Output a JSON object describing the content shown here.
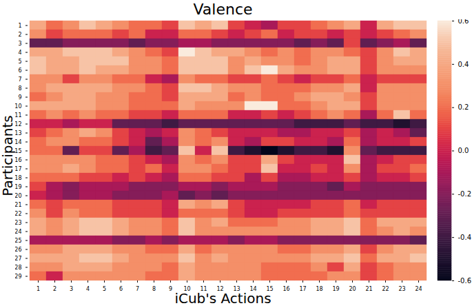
{
  "chart_data": {
    "type": "heatmap",
    "title": "Valence",
    "xlabel": "iCub's Actions",
    "ylabel": "Participants",
    "x_categories": [
      1,
      2,
      3,
      4,
      5,
      6,
      7,
      8,
      9,
      10,
      11,
      12,
      13,
      14,
      15,
      16,
      17,
      18,
      19,
      20,
      21,
      22,
      23,
      24
    ],
    "y_categories": [
      1,
      2,
      3,
      4,
      5,
      6,
      7,
      8,
      9,
      10,
      11,
      12,
      13,
      14,
      15,
      16,
      17,
      18,
      19,
      20,
      21,
      22,
      23,
      24,
      25,
      26,
      27,
      28,
      29
    ],
    "values": [
      [
        0.4,
        0.2,
        0.3,
        0.5,
        0.4,
        0.3,
        0.2,
        0.2,
        0.1,
        0.5,
        0.4,
        0.5,
        0.1,
        0.0,
        -0.1,
        0.1,
        0.1,
        0.2,
        0.3,
        0.4,
        0.0,
        0.4,
        0.5,
        0.5
      ],
      [
        0.3,
        0.1,
        0.2,
        0.2,
        0.2,
        0.1,
        0.2,
        0.0,
        0.0,
        0.2,
        0.2,
        0.1,
        0.0,
        0.1,
        0.2,
        0.0,
        0.1,
        0.1,
        0.0,
        0.1,
        0.0,
        0.1,
        0.2,
        0.3
      ],
      [
        -0.3,
        -0.3,
        -0.2,
        -0.2,
        -0.2,
        -0.2,
        -0.3,
        -0.2,
        -0.2,
        -0.1,
        -0.1,
        -0.2,
        -0.2,
        -0.2,
        -0.2,
        -0.2,
        -0.3,
        -0.2,
        -0.3,
        0.1,
        -0.3,
        -0.2,
        -0.1,
        -0.3
      ],
      [
        0.4,
        0.4,
        0.5,
        0.5,
        0.5,
        0.4,
        0.3,
        0.2,
        0.1,
        0.6,
        0.5,
        0.4,
        0.4,
        0.3,
        0.2,
        0.3,
        0.2,
        0.3,
        0.3,
        0.2,
        0.1,
        0.3,
        0.5,
        0.4
      ],
      [
        0.5,
        0.4,
        0.4,
        0.5,
        0.5,
        0.5,
        0.3,
        0.3,
        0.2,
        0.5,
        0.5,
        0.5,
        0.3,
        0.4,
        0.3,
        0.3,
        0.2,
        0.3,
        0.4,
        0.4,
        0.1,
        0.3,
        0.4,
        0.4
      ],
      [
        0.5,
        0.4,
        0.4,
        0.5,
        0.4,
        0.4,
        0.3,
        0.3,
        0.2,
        0.5,
        0.5,
        0.5,
        0.3,
        0.5,
        0.6,
        0.4,
        0.3,
        0.3,
        0.4,
        0.4,
        0.1,
        0.3,
        0.3,
        0.3
      ],
      [
        0.3,
        0.3,
        0.1,
        0.3,
        0.3,
        0.2,
        0.2,
        0.0,
        -0.1,
        0.3,
        0.2,
        0.2,
        0.1,
        0.1,
        0.2,
        0.1,
        0.0,
        0.1,
        0.1,
        0.2,
        0.0,
        0.1,
        0.1,
        0.1
      ],
      [
        0.3,
        0.4,
        0.4,
        0.4,
        0.4,
        0.3,
        0.3,
        0.2,
        0.1,
        0.5,
        0.5,
        0.4,
        0.3,
        0.3,
        0.2,
        0.2,
        0.2,
        0.3,
        0.3,
        0.4,
        0.0,
        0.3,
        0.3,
        0.3
      ],
      [
        0.2,
        0.3,
        0.4,
        0.4,
        0.3,
        0.3,
        0.2,
        0.2,
        0.1,
        0.4,
        0.4,
        0.4,
        0.2,
        0.3,
        0.2,
        0.2,
        0.3,
        0.4,
        0.4,
        0.3,
        0.1,
        0.3,
        0.3,
        0.3
      ],
      [
        0.4,
        0.4,
        0.4,
        0.4,
        0.3,
        0.3,
        0.2,
        0.2,
        0.2,
        0.4,
        0.3,
        0.3,
        0.3,
        0.6,
        0.6,
        0.2,
        0.2,
        0.3,
        0.4,
        0.4,
        0.1,
        0.3,
        0.3,
        0.3
      ],
      [
        0.2,
        0.3,
        0.2,
        0.3,
        0.2,
        0.2,
        0.1,
        0.1,
        0.0,
        0.2,
        0.2,
        0.2,
        0.0,
        0.0,
        0.1,
        0.0,
        0.1,
        0.2,
        0.3,
        0.2,
        -0.1,
        0.2,
        0.5,
        0.2
      ],
      [
        0.0,
        0.0,
        -0.1,
        0.0,
        0.0,
        -0.3,
        -0.3,
        -0.3,
        -0.4,
        -0.3,
        -0.3,
        -0.3,
        -0.3,
        -0.3,
        -0.3,
        -0.3,
        -0.4,
        -0.4,
        -0.4,
        -0.3,
        -0.4,
        -0.4,
        -0.5,
        -0.4
      ],
      [
        0.1,
        0.2,
        0.3,
        0.4,
        0.3,
        0.1,
        0.0,
        -0.1,
        0.0,
        0.3,
        0.2,
        0.1,
        0.0,
        0.0,
        0.0,
        -0.1,
        -0.1,
        0.0,
        0.0,
        0.1,
        -0.1,
        0.0,
        -0.1,
        -0.3
      ],
      [
        0.2,
        0.3,
        0.3,
        0.2,
        0.2,
        0.1,
        0.0,
        -0.3,
        -0.1,
        0.3,
        0.2,
        0.3,
        0.0,
        -0.1,
        0.1,
        0.1,
        0.0,
        0.0,
        -0.1,
        0.2,
        -0.1,
        0.0,
        0.0,
        0.1
      ],
      [
        0.2,
        0.2,
        -0.3,
        0.1,
        0.1,
        -0.3,
        -0.1,
        -0.4,
        -0.3,
        0.5,
        0.0,
        0.5,
        -0.4,
        -0.5,
        -0.6,
        -0.5,
        -0.4,
        -0.4,
        -0.5,
        0.3,
        -0.3,
        -0.4,
        -0.4,
        -0.4
      ],
      [
        0.3,
        0.3,
        0.3,
        0.3,
        0.2,
        0.2,
        0.1,
        0.0,
        -0.1,
        0.3,
        0.2,
        0.3,
        0.1,
        0.1,
        0.4,
        0.1,
        0.0,
        0.0,
        0.0,
        0.5,
        -0.1,
        0.0,
        0.1,
        0.1
      ],
      [
        0.3,
        0.3,
        0.4,
        0.3,
        0.2,
        0.2,
        0.1,
        0.2,
        0.0,
        0.3,
        0.3,
        0.2,
        0.1,
        0.1,
        0.5,
        0.0,
        0.0,
        0.1,
        0.0,
        0.3,
        -0.1,
        0.1,
        0.1,
        0.2
      ],
      [
        0.2,
        0.2,
        0.2,
        0.1,
        0.1,
        0.0,
        0.1,
        0.0,
        -0.1,
        0.2,
        0.2,
        0.1,
        0.1,
        -0.1,
        0.1,
        -0.1,
        -0.1,
        0.0,
        0.0,
        0.1,
        -0.1,
        0.0,
        0.0,
        0.1
      ],
      [
        0.1,
        -0.1,
        -0.2,
        -0.1,
        -0.1,
        -0.1,
        -0.2,
        -0.2,
        -0.2,
        -0.1,
        -0.1,
        -0.2,
        -0.1,
        -0.1,
        -0.1,
        -0.2,
        -0.2,
        -0.2,
        -0.3,
        -0.1,
        -0.2,
        -0.2,
        -0.2,
        -0.2
      ],
      [
        0.0,
        -0.1,
        -0.2,
        -0.1,
        -0.1,
        -0.2,
        -0.2,
        -0.2,
        -0.1,
        -0.3,
        -0.2,
        -0.3,
        -0.2,
        -0.2,
        -0.2,
        -0.2,
        -0.2,
        -0.2,
        -0.2,
        -0.2,
        -0.2,
        -0.2,
        -0.2,
        -0.2
      ],
      [
        0.2,
        0.1,
        0.2,
        0.2,
        0.2,
        0.1,
        0.1,
        0.1,
        0.0,
        0.4,
        0.3,
        0.4,
        0.1,
        0.0,
        0.0,
        0.0,
        0.0,
        0.1,
        0.1,
        0.2,
        0.0,
        0.1,
        0.1,
        0.1
      ],
      [
        0.3,
        0.1,
        0.3,
        0.2,
        0.2,
        0.1,
        0.1,
        0.1,
        0.0,
        0.2,
        0.2,
        0.2,
        0.1,
        0.0,
        0.0,
        0.1,
        0.1,
        0.1,
        0.1,
        0.2,
        0.1,
        0.1,
        0.1,
        0.1
      ],
      [
        0.4,
        0.3,
        0.4,
        0.5,
        0.5,
        0.4,
        0.3,
        0.3,
        0.2,
        0.5,
        0.3,
        0.4,
        0.2,
        0.2,
        0.2,
        0.3,
        0.3,
        0.4,
        0.4,
        0.5,
        0.2,
        0.4,
        0.4,
        0.4
      ],
      [
        0.4,
        0.3,
        0.4,
        0.5,
        0.5,
        0.4,
        0.3,
        0.3,
        0.2,
        0.5,
        0.3,
        0.3,
        0.3,
        0.3,
        0.3,
        0.3,
        0.3,
        0.4,
        0.4,
        0.5,
        0.2,
        0.3,
        0.4,
        0.3
      ],
      [
        -0.1,
        -0.1,
        -0.1,
        -0.1,
        -0.1,
        -0.2,
        -0.2,
        -0.1,
        -0.2,
        -0.1,
        -0.1,
        -0.1,
        -0.2,
        -0.1,
        -0.1,
        -0.2,
        -0.2,
        -0.2,
        -0.2,
        -0.2,
        -0.2,
        -0.2,
        -0.2,
        -0.3
      ],
      [
        0.3,
        0.3,
        0.4,
        0.4,
        0.4,
        0.3,
        0.3,
        0.2,
        0.2,
        0.4,
        0.2,
        0.3,
        0.3,
        0.3,
        0.3,
        0.2,
        0.2,
        0.3,
        0.3,
        0.4,
        0.1,
        0.3,
        0.4,
        0.4
      ],
      [
        0.4,
        0.4,
        0.4,
        0.5,
        0.5,
        0.4,
        0.3,
        0.3,
        0.3,
        0.5,
        0.3,
        0.4,
        0.3,
        0.3,
        0.3,
        0.3,
        0.3,
        0.4,
        0.4,
        0.5,
        0.2,
        0.4,
        0.4,
        0.5
      ],
      [
        0.3,
        0.3,
        0.4,
        0.4,
        0.4,
        0.3,
        0.3,
        0.3,
        0.2,
        0.4,
        0.3,
        0.3,
        0.3,
        0.3,
        0.2,
        0.2,
        0.2,
        0.3,
        0.1,
        0.4,
        0.1,
        0.2,
        0.3,
        0.3
      ],
      [
        0.2,
        0.0,
        0.3,
        0.3,
        0.3,
        0.3,
        0.3,
        0.2,
        0.2,
        0.4,
        0.3,
        0.3,
        0.3,
        0.3,
        0.2,
        0.2,
        0.2,
        0.2,
        0.3,
        0.3,
        0.1,
        0.2,
        0.3,
        0.3
      ]
    ],
    "colorbar": {
      "lim": [
        -0.6,
        0.6
      ],
      "ticks": [
        -0.6,
        -0.4,
        -0.2,
        {
          "value": 0,
          "label": "0.0"
        },
        0.2,
        0.4,
        0.6
      ]
    }
  }
}
